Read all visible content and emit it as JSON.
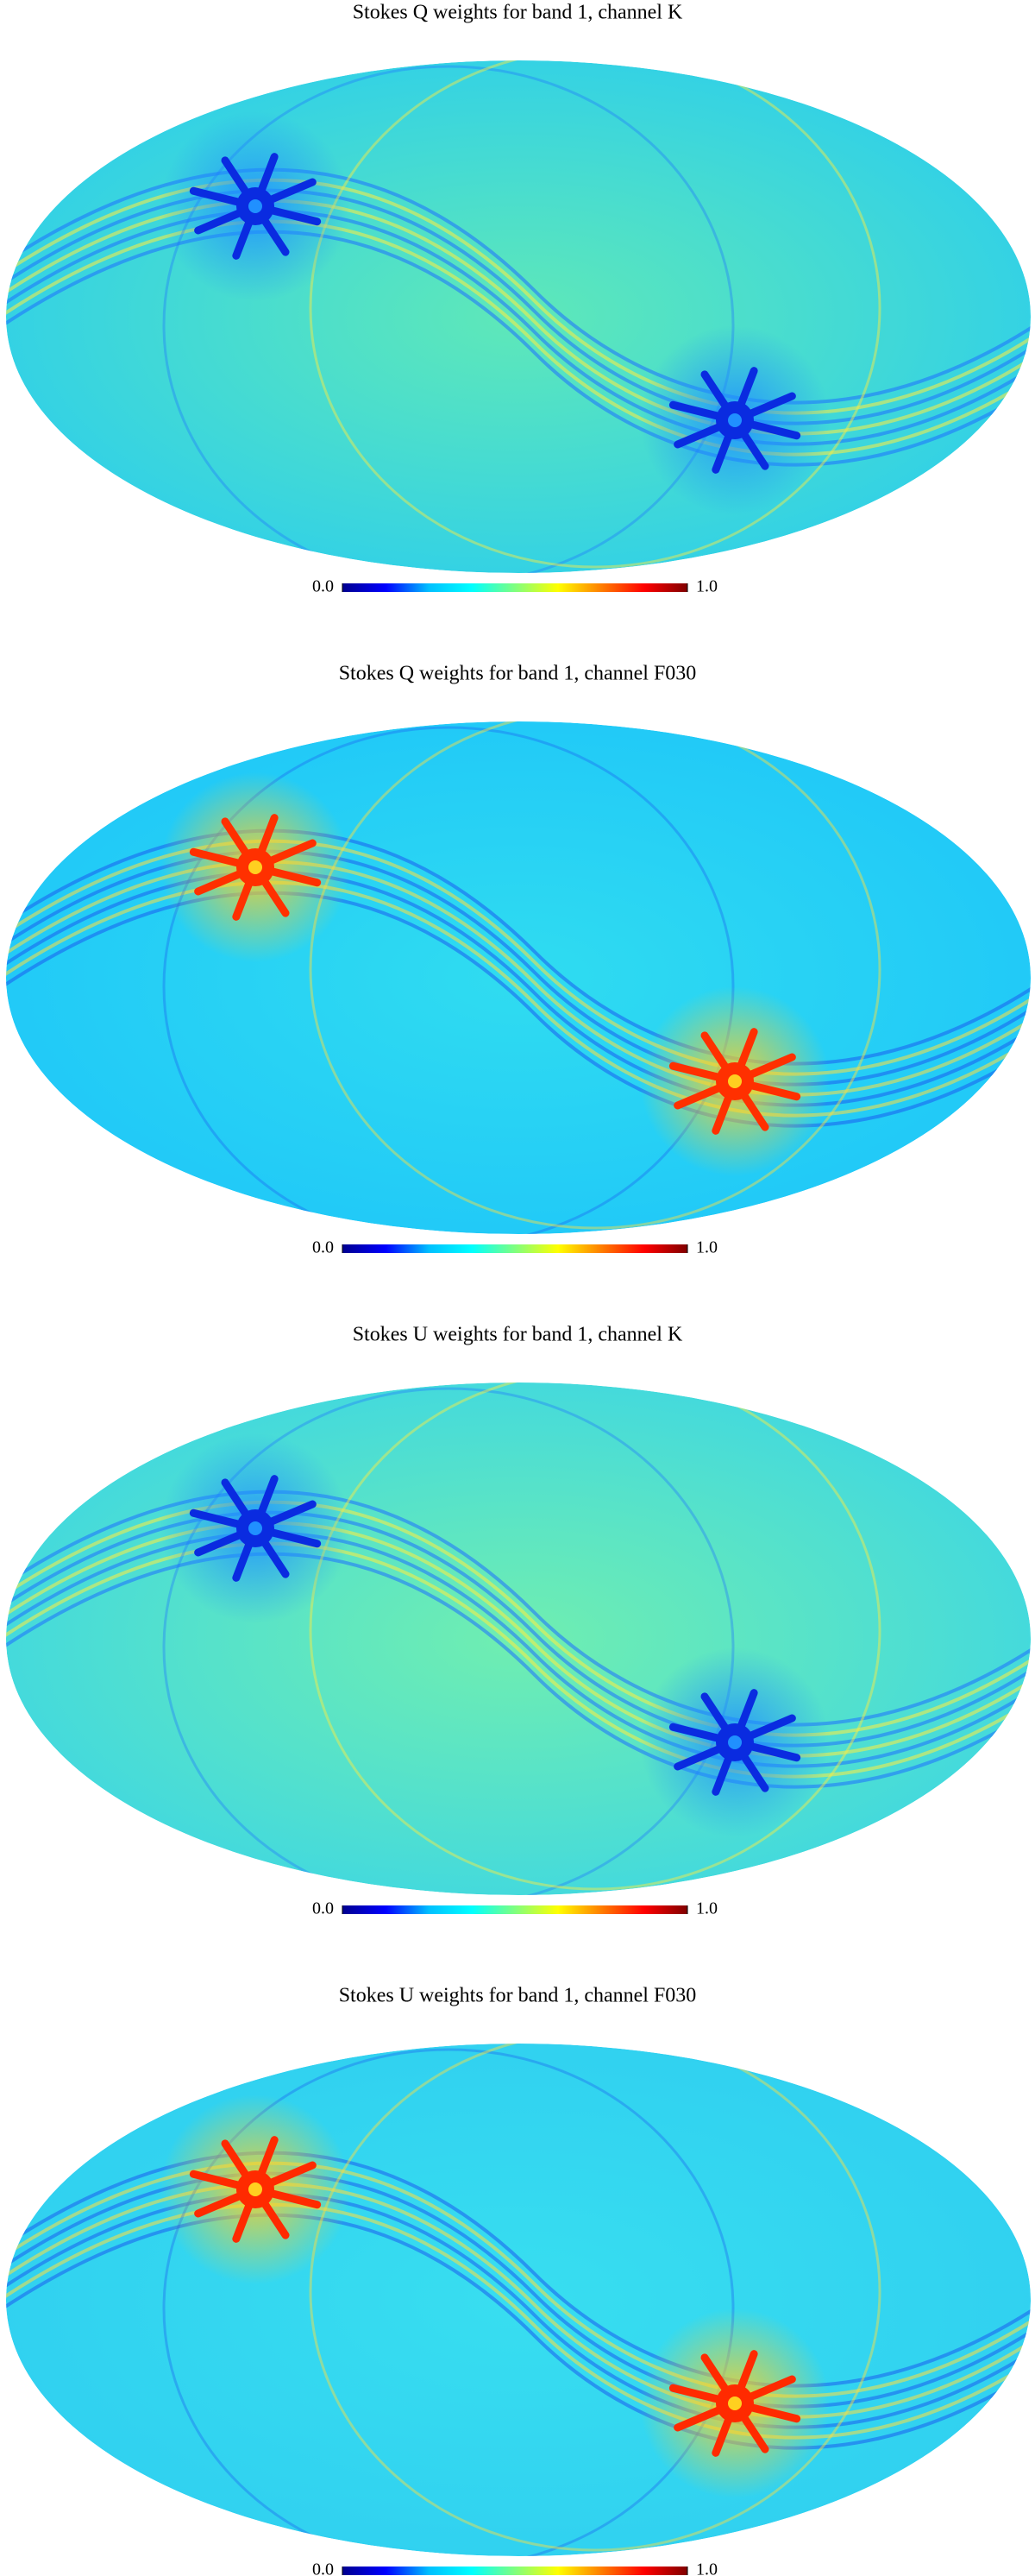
{
  "chart_data": [
    {
      "type": "mollweide",
      "title": "Stokes Q weights for band 1, channel K",
      "colormap": [
        "#00008f",
        "#0000ff",
        "#00bfff",
        "#00ffff",
        "#7fff7f",
        "#ffff00",
        "#ff7f00",
        "#ff0000",
        "#800000"
      ],
      "colorbar": {
        "lim": [
          0,
          1
        ],
        "ticks": [
          {
            "value": 0,
            "label": "0.0"
          },
          {
            "value": 1,
            "label": "1.0"
          }
        ]
      }
    },
    {
      "type": "mollweide",
      "title": "Stokes Q weights for band 1, channel F030",
      "colormap": [
        "#00008f",
        "#0000ff",
        "#00bfff",
        "#00ffff",
        "#7fff7f",
        "#ffff00",
        "#ff7f00",
        "#ff0000",
        "#800000"
      ],
      "colorbar": {
        "lim": [
          0,
          1
        ],
        "ticks": [
          {
            "value": 0,
            "label": "0.0"
          },
          {
            "value": 1,
            "label": "1.0"
          }
        ]
      }
    },
    {
      "type": "mollweide",
      "title": "Stokes U weights for band 1, channel K",
      "colormap": [
        "#00008f",
        "#0000ff",
        "#00bfff",
        "#00ffff",
        "#7fff7f",
        "#ffff00",
        "#ff7f00",
        "#ff0000",
        "#800000"
      ],
      "colorbar": {
        "lim": [
          0,
          1
        ],
        "ticks": [
          {
            "value": 0,
            "label": "0.0"
          },
          {
            "value": 1,
            "label": "1.0"
          }
        ]
      }
    },
    {
      "type": "mollweide",
      "title": "Stokes U weights for band 1, channel F030",
      "colormap": [
        "#00008f",
        "#0000ff",
        "#00bfff",
        "#00ffff",
        "#7fff7f",
        "#ffff00",
        "#ff7f00",
        "#ff0000",
        "#800000"
      ],
      "colorbar": {
        "lim": [
          0,
          1
        ],
        "ticks": [
          {
            "value": 0,
            "label": "0.0"
          },
          {
            "value": 1,
            "label": "1.0"
          }
        ]
      }
    }
  ]
}
